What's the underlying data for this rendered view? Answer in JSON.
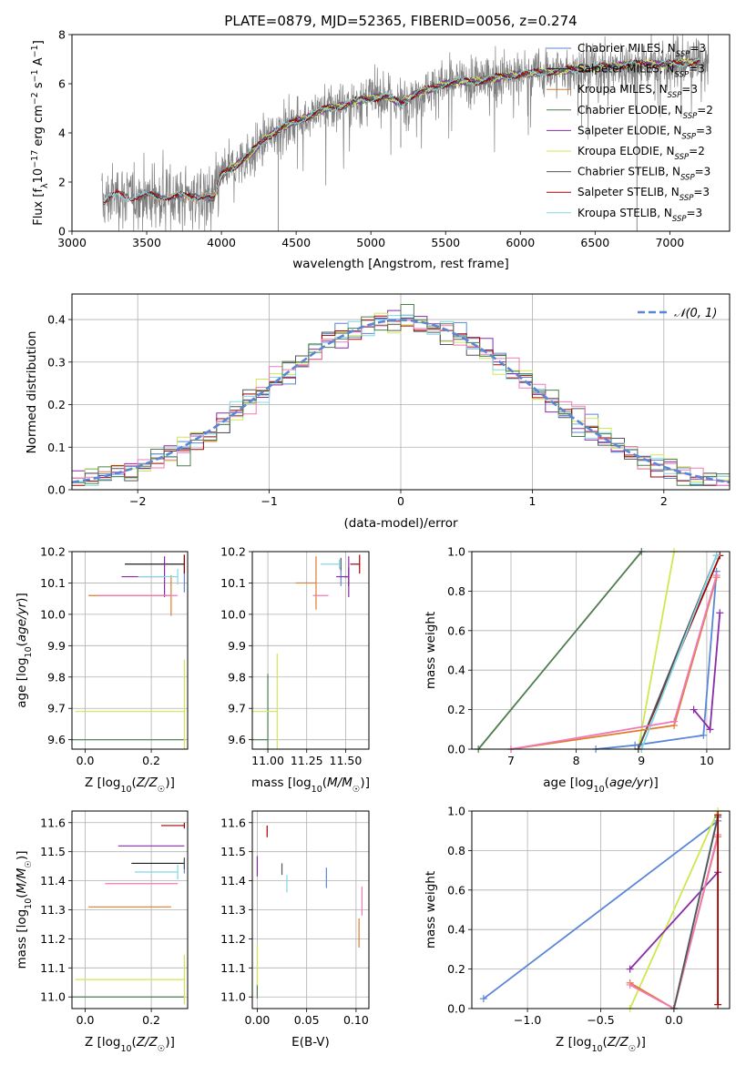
{
  "figure": {
    "title": "PLATE=0879, MJD=52365, FIBERID=0056, z=0.274"
  },
  "colors": {
    "Chabrier MILES": "#5b86d6",
    "Salpeter MILES": "#1b1b1b",
    "Kroupa MILES": "#e07b2a",
    "Chabrier ELODIE": "#4f7d4f",
    "Salpeter ELODIE": "#8a2ba8",
    "Kroupa ELODIE": "#cfe84e",
    "Chabrier STELIB": "#555555",
    "Salpeter STELIB": "#a00000",
    "Kroupa STELIB": "#7fd8e6",
    "Kroupa STELIB hist": "#f07ab8",
    "observed": "#808080",
    "grid": "#b0b0b0"
  },
  "chart_data": [
    {
      "id": "spectrum",
      "type": "line",
      "xlabel": "wavelength [Angstrom, rest frame]",
      "ylabel": "Flux [f_λ 10^-17 erg cm^-2 s^-1 A^-1]",
      "xlim": [
        3000,
        7400
      ],
      "ylim": [
        0,
        8
      ],
      "xticks": [
        3000,
        3500,
        4000,
        4500,
        5000,
        5500,
        6000,
        6500,
        7000
      ],
      "yticks": [
        0,
        2,
        4,
        6,
        8
      ],
      "legend": [
        {
          "label": "Chabrier MILES, N",
          "sub": "SSP",
          "tail": "=3",
          "color_key": "Chabrier MILES"
        },
        {
          "label": "Salpeter MILES, N",
          "sub": "SSP",
          "tail": "=3",
          "color_key": "Salpeter MILES"
        },
        {
          "label": "Kroupa MILES, N",
          "sub": "SSP",
          "tail": "=3",
          "color_key": "Kroupa MILES"
        },
        {
          "label": "Chabrier ELODIE, N",
          "sub": "SSP",
          "tail": "=2",
          "color_key": "Chabrier ELODIE"
        },
        {
          "label": "Salpeter ELODIE, N",
          "sub": "SSP",
          "tail": "=3",
          "color_key": "Salpeter ELODIE"
        },
        {
          "label": "Kroupa ELODIE, N",
          "sub": "SSP",
          "tail": "=2",
          "color_key": "Kroupa ELODIE"
        },
        {
          "label": "Chabrier STELIB, N",
          "sub": "SSP",
          "tail": "=3",
          "color_key": "Chabrier STELIB"
        },
        {
          "label": "Salpeter STELIB, N",
          "sub": "SSP",
          "tail": "=3",
          "color_key": "Salpeter STELIB"
        },
        {
          "label": "Kroupa STELIB, N",
          "sub": "SSP",
          "tail": "=3",
          "color_key": "Kroupa STELIB"
        }
      ],
      "continuum": {
        "x": [
          3210,
          3300,
          3400,
          3500,
          3600,
          3700,
          3800,
          3900,
          3950,
          4000,
          4100,
          4200,
          4300,
          4400,
          4500,
          4600,
          4700,
          4800,
          4900,
          5000,
          5100,
          5200,
          5300,
          5400,
          5500,
          5600,
          5700,
          5800,
          5900,
          6000,
          6200,
          6400,
          6600,
          6800,
          7000,
          7200
        ],
        "y": [
          1.2,
          1.5,
          1.4,
          1.45,
          1.4,
          1.45,
          1.4,
          1.5,
          1.3,
          2.3,
          2.7,
          3.2,
          3.8,
          4.2,
          4.5,
          4.7,
          5.0,
          5.1,
          5.3,
          5.4,
          5.5,
          5.2,
          5.6,
          5.8,
          6.0,
          6.1,
          6.1,
          6.2,
          6.3,
          6.4,
          6.5,
          6.6,
          6.7,
          6.8,
          6.8,
          6.9
        ]
      },
      "observed_range": [
        3200,
        7260
      ]
    },
    {
      "id": "residual-hist",
      "type": "bar",
      "xlabel": "(data-model)/error",
      "ylabel": "Normed distribution",
      "xlim": [
        -2.5,
        2.5
      ],
      "ylim": [
        0,
        0.46
      ],
      "xticks": [
        -2,
        -1,
        0,
        1,
        2
      ],
      "yticks": [
        0.0,
        0.1,
        0.2,
        0.3,
        0.4
      ],
      "legend": [
        {
          "label": "𝒩(0, 1)",
          "style": "dashed"
        }
      ],
      "bin_width": 0.1,
      "bin_start": -2.5
    },
    {
      "id": "age-vs-Z",
      "type": "scatter",
      "xlabel": "Z [log10(Z/Z☉)]",
      "ylabel": "age [log10(age/yr)]",
      "xlim": [
        -0.04,
        0.31
      ],
      "ylim": [
        9.57,
        10.2
      ],
      "xticks": [
        0.0,
        0.2
      ],
      "yticks": [
        9.6,
        9.7,
        9.8,
        9.9,
        10.0,
        10.1,
        10.2
      ],
      "points": [
        {
          "key": "Chabrier MILES",
          "x": 0.3,
          "y": 10.1,
          "xerr": 0.0,
          "yerr": 0.06
        },
        {
          "key": "Salpeter MILES",
          "x": 0.3,
          "y": 10.16,
          "xerr": 0.18,
          "yerr": 0.0
        },
        {
          "key": "Kroupa MILES",
          "x": 0.26,
          "y": 10.06,
          "xerr": 0.25,
          "yerr": 0.13
        },
        {
          "key": "Chabrier ELODIE",
          "x": 0.3,
          "y": 9.6,
          "xerr": 0.37,
          "yerr": 0.0
        },
        {
          "key": "Salpeter ELODIE",
          "x": 0.24,
          "y": 10.12,
          "xerr": 0.13,
          "yerr": 0.13
        },
        {
          "key": "Kroupa ELODIE",
          "x": 0.3,
          "y": 9.69,
          "xerr": 0.33,
          "yerr": 0.33
        },
        {
          "key": "Chabrier STELIB",
          "x": 0.3,
          "y": 10.16,
          "xerr": 0.0,
          "yerr": 0.06
        },
        {
          "key": "Salpeter STELIB",
          "x": 0.3,
          "y": 10.16,
          "xerr": 0.0,
          "yerr": 0.06
        },
        {
          "key": "Kroupa STELIB",
          "x": 0.28,
          "y": 10.12,
          "xerr": 0.12,
          "yerr": 0.05
        },
        {
          "key": "Kroupa STELIB hist",
          "x": 0.28,
          "y": 10.06,
          "xerr": 0.24,
          "yerr": 0.0
        }
      ]
    },
    {
      "id": "age-vs-mass",
      "type": "scatter",
      "xlabel": "mass [log10(M/M☉)]",
      "ylabel": "",
      "xlim": [
        10.9,
        11.65
      ],
      "ylim": [
        9.57,
        10.2
      ],
      "xticks": [
        11.0,
        11.25,
        11.5
      ],
      "yticks": [
        9.6,
        9.7,
        9.8,
        9.9,
        10.0,
        10.1,
        10.2
      ],
      "points": [
        {
          "key": "Chabrier MILES",
          "x": 11.47,
          "y": 10.12,
          "xerr": 0.0,
          "yerr": 0.06
        },
        {
          "key": "Salpeter MILES",
          "x": 11.52,
          "y": 10.12,
          "xerr": 0.03,
          "yerr": 0.06
        },
        {
          "key": "Kroupa MILES",
          "x": 11.31,
          "y": 10.1,
          "xerr": 0.13,
          "yerr": 0.17
        },
        {
          "key": "Chabrier ELODIE",
          "x": 11.0,
          "y": 9.6,
          "xerr": 0.24,
          "yerr": 0.42
        },
        {
          "key": "Salpeter ELODIE",
          "x": 11.52,
          "y": 10.12,
          "xerr": 0.08,
          "yerr": 0.13
        },
        {
          "key": "Kroupa ELODIE",
          "x": 11.06,
          "y": 9.69,
          "xerr": 0.24,
          "yerr": 0.37
        },
        {
          "key": "Chabrier STELIB",
          "x": 11.47,
          "y": 10.16,
          "xerr": 0.0,
          "yerr": 0.04
        },
        {
          "key": "Salpeter STELIB",
          "x": 11.59,
          "y": 10.16,
          "xerr": 0.06,
          "yerr": 0.06
        },
        {
          "key": "Kroupa STELIB",
          "x": 11.46,
          "y": 10.16,
          "xerr": 0.12,
          "yerr": 0.03
        },
        {
          "key": "Kroupa STELIB hist",
          "x": 11.39,
          "y": 10.06,
          "xerr": 0.1,
          "yerr": 0.0
        }
      ]
    },
    {
      "id": "massweight-vs-age",
      "type": "line",
      "xlabel": "age [log10(age/yr)]",
      "ylabel": "mass weight",
      "xlim": [
        6.4,
        10.35
      ],
      "ylim": [
        0,
        1
      ],
      "xticks": [
        7,
        8,
        9,
        10
      ],
      "yticks": [
        0.0,
        0.2,
        0.4,
        0.6,
        0.8,
        1.0
      ],
      "series": [
        {
          "key": "Chabrier ELODIE",
          "x": [
            6.5,
            9.0
          ],
          "y": [
            0.0,
            1.0
          ]
        },
        {
          "key": "Kroupa ELODIE",
          "x": [
            8.95,
            9.5
          ],
          "y": [
            0.0,
            1.0
          ]
        },
        {
          "key": "Chabrier MILES",
          "x": [
            8.3,
            8.9,
            9.95,
            10.15
          ],
          "y": [
            0.0,
            0.02,
            0.07,
            0.9
          ]
        },
        {
          "key": "Salpeter ELODIE",
          "x": [
            9.8,
            10.05,
            10.2
          ],
          "y": [
            0.2,
            0.1,
            0.69
          ]
        },
        {
          "key": "Salpeter STELIB",
          "x": [
            8.95,
            10.2
          ],
          "y": [
            0.0,
            0.98
          ]
        },
        {
          "key": "Chabrier STELIB",
          "x": [
            8.95,
            10.15
          ],
          "y": [
            0.0,
            0.98
          ]
        },
        {
          "key": "Kroupa MILES",
          "x": [
            7.0,
            9.5,
            10.15
          ],
          "y": [
            0.0,
            0.12,
            0.87
          ]
        },
        {
          "key": "Kroupa STELIB",
          "x": [
            9.0,
            10.15
          ],
          "y": [
            0.0,
            0.98
          ]
        },
        {
          "key": "Kroupa STELIB hist",
          "x": [
            7.0,
            9.5,
            10.15
          ],
          "y": [
            0.0,
            0.14,
            0.88
          ]
        }
      ]
    },
    {
      "id": "mass-vs-Z",
      "type": "scatter",
      "xlabel": "Z [log10(Z/Z☉)]",
      "ylabel": "mass [log10(M/M☉)]",
      "xlim": [
        -0.04,
        0.31
      ],
      "ylim": [
        10.96,
        11.64
      ],
      "xticks": [
        0.0,
        0.2
      ],
      "yticks": [
        11.0,
        11.1,
        11.2,
        11.3,
        11.4,
        11.5,
        11.6
      ],
      "points": [
        {
          "key": "Chabrier MILES",
          "x": 0.3,
          "y": 11.45,
          "xerr": 0.0,
          "yerr": 0.05
        },
        {
          "key": "Salpeter MILES",
          "x": 0.3,
          "y": 11.46,
          "xerr": 0.16,
          "yerr": 0.0
        },
        {
          "key": "Kroupa MILES",
          "x": 0.26,
          "y": 11.31,
          "xerr": 0.25,
          "yerr": 0.0
        },
        {
          "key": "Chabrier ELODIE",
          "x": 0.3,
          "y": 11.0,
          "xerr": 0.37,
          "yerr": 0.0
        },
        {
          "key": "Salpeter ELODIE",
          "x": 0.3,
          "y": 11.52,
          "xerr": 0.2,
          "yerr": 0.0
        },
        {
          "key": "Kroupa ELODIE",
          "x": 0.3,
          "y": 11.06,
          "xerr": 0.33,
          "yerr": 0.17
        },
        {
          "key": "Chabrier STELIB",
          "x": 0.3,
          "y": 11.46,
          "xerr": 0.0,
          "yerr": 0.04
        },
        {
          "key": "Salpeter STELIB",
          "x": 0.3,
          "y": 11.59,
          "xerr": 0.07,
          "yerr": 0.02
        },
        {
          "key": "Kroupa STELIB",
          "x": 0.28,
          "y": 11.43,
          "xerr": 0.13,
          "yerr": 0.05
        },
        {
          "key": "Kroupa STELIB hist",
          "x": 0.28,
          "y": 11.39,
          "xerr": 0.22,
          "yerr": 0.0
        }
      ]
    },
    {
      "id": "mass-vs-ebv",
      "type": "scatter",
      "xlabel": "E(B-V)",
      "ylabel": "",
      "xlim": [
        -0.005,
        0.113
      ],
      "ylim": [
        10.96,
        11.64
      ],
      "xticks": [
        0.0,
        0.05,
        0.1
      ],
      "yticks": [
        11.0,
        11.1,
        11.2,
        11.3,
        11.4,
        11.5,
        11.6
      ],
      "points": [
        {
          "key": "Chabrier MILES",
          "x": 0.07,
          "y": 11.41,
          "xerr": 0.0,
          "yerr": 0.07
        },
        {
          "key": "Kroupa MILES",
          "x": 0.103,
          "y": 11.22,
          "xerr": 0.0,
          "yerr": 0.1
        },
        {
          "key": "Chabrier ELODIE",
          "x": 0.0,
          "y": 11.02,
          "xerr": 0.0,
          "yerr": 0.05
        },
        {
          "key": "Salpeter ELODIE",
          "x": 0.0,
          "y": 11.45,
          "xerr": 0.0,
          "yerr": 0.07
        },
        {
          "key": "Kroupa ELODIE",
          "x": 0.0,
          "y": 11.11,
          "xerr": 0.0,
          "yerr": 0.14
        },
        {
          "key": "Chabrier STELIB",
          "x": 0.025,
          "y": 11.44,
          "xerr": 0.0,
          "yerr": 0.04
        },
        {
          "key": "Salpeter STELIB",
          "x": 0.01,
          "y": 11.57,
          "xerr": 0.0,
          "yerr": 0.04
        },
        {
          "key": "Kroupa STELIB",
          "x": 0.03,
          "y": 11.39,
          "xerr": 0.0,
          "yerr": 0.06
        },
        {
          "key": "Kroupa STELIB hist",
          "x": 0.106,
          "y": 11.33,
          "xerr": 0.0,
          "yerr": 0.1
        }
      ]
    },
    {
      "id": "massweight-vs-Z",
      "type": "line",
      "xlabel": "Z [log10(Z/Z☉)]",
      "ylabel": "mass weight",
      "xlim": [
        -1.38,
        0.38
      ],
      "ylim": [
        0,
        1
      ],
      "xticks": [
        -1.0,
        -0.5,
        0.0
      ],
      "yticks": [
        0.0,
        0.2,
        0.4,
        0.6,
        0.8,
        1.0
      ],
      "series": [
        {
          "key": "Chabrier MILES",
          "x": [
            -1.3,
            0.3
          ],
          "y": [
            0.05,
            0.95
          ]
        },
        {
          "key": "Kroupa ELODIE",
          "x": [
            -0.3,
            0.3
          ],
          "y": [
            0.0,
            1.0
          ]
        },
        {
          "key": "Salpeter ELODIE",
          "x": [
            -0.3,
            0.3
          ],
          "y": [
            0.2,
            0.69
          ]
        },
        {
          "key": "Kroupa MILES",
          "x": [
            -0.3,
            0.0,
            0.3
          ],
          "y": [
            0.13,
            0.0,
            0.87
          ]
        },
        {
          "key": "Kroupa STELIB hist",
          "x": [
            -0.3,
            0.0,
            0.3
          ],
          "y": [
            0.12,
            0.0,
            0.88
          ]
        },
        {
          "key": "Kroupa STELIB",
          "x": [
            0.0,
            0.3
          ],
          "y": [
            0.0,
            0.98
          ]
        },
        {
          "key": "Chabrier STELIB",
          "x": [
            0.0,
            0.3
          ],
          "y": [
            0.0,
            0.97
          ]
        },
        {
          "key": "Salpeter STELIB",
          "x": [
            0.3,
            0.3
          ],
          "y": [
            0.02,
            0.98
          ]
        }
      ]
    }
  ]
}
